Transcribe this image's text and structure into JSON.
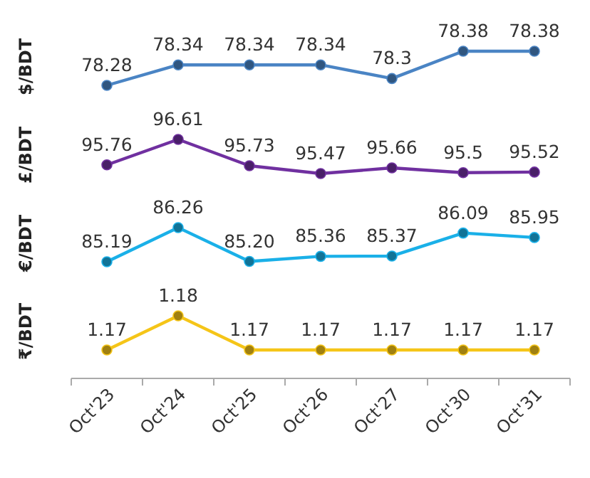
{
  "chart_data": [
    {
      "type": "line",
      "ylabel": "$/BDT",
      "categories": [
        null,
        null,
        null,
        null,
        null,
        null,
        null
      ],
      "series": [
        {
          "color": "#4a84c4",
          "values": [
            78.28,
            78.34,
            78.34,
            78.34,
            78.3,
            78.38,
            78.38
          ]
        }
      ],
      "data_labels": true,
      "marker": "circle",
      "tick_labels": false
    },
    {
      "type": "line",
      "ylabel": "£/BDT",
      "categories": [
        null,
        null,
        null,
        null,
        null,
        null,
        null
      ],
      "series": [
        {
          "color": "#7030a0",
          "values": [
            95.76,
            96.61,
            95.73,
            95.47,
            95.66,
            95.5,
            95.52
          ]
        }
      ],
      "data_labels": true,
      "marker": "circle",
      "tick_labels": false
    },
    {
      "type": "line",
      "ylabel": "€/BDT",
      "categories": [
        null,
        null,
        null,
        null,
        null,
        null,
        null
      ],
      "series": [
        {
          "color": "#1ab0e8",
          "values": [
            85.19,
            86.26,
            85.2,
            85.36,
            85.37,
            86.09,
            85.95
          ],
          "value_labels": [
            "85.19",
            "86.26",
            "85.20",
            "85.36",
            "85.37",
            "86.09",
            "85.95"
          ]
        }
      ],
      "marker": "circle",
      "tick_labels": false
    },
    {
      "type": "line",
      "ylabel": "₹/BDT",
      "categories": [
        "Oct'23",
        "Oct'24",
        "Oct'25",
        "Oct'26",
        "Oct'27",
        "Oct'30",
        "Oct'31"
      ],
      "series": [
        {
          "color": "#f5c518",
          "values": [
            1.17,
            1.18,
            1.17,
            1.17,
            1.17,
            1.17,
            1.17
          ]
        }
      ],
      "data_labels": true,
      "marker": "circle",
      "tick_labels": "x"
    }
  ]
}
